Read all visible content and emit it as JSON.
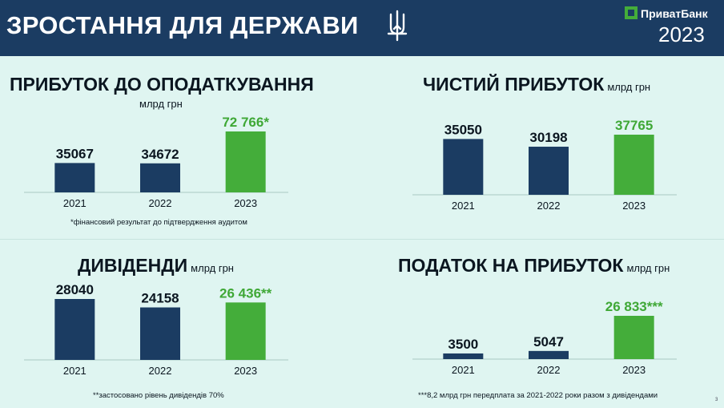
{
  "header": {
    "title": "ЗРОСТАННЯ ДЛЯ ДЕРЖАВИ",
    "brand": "ПриватБанк",
    "year": "2023",
    "emblem_icon": "trident-icon",
    "brand_icon": "privatbank-logo-icon"
  },
  "colors": {
    "header_bg": "#1b3c62",
    "background": "#dff5f1",
    "bar_dark": "#1b3c62",
    "bar_green": "#44ad3a",
    "label_green": "#3fa836"
  },
  "panels": {
    "profit_before_tax": {
      "title": "ПРИБУТОК ДО ОПОДАТКУВАННЯ",
      "unit": "млрд грн",
      "footnote": "*фінансовий результат до підтвердження аудитом"
    },
    "net_profit": {
      "title": "ЧИСТИЙ ПРИБУТОК",
      "unit": "млрд грн"
    },
    "dividends": {
      "title": "ДИВІДЕНДИ",
      "unit": "млрд грн",
      "footnote": "**застосовано рівень дивідендів 70%"
    },
    "income_tax": {
      "title": "ПОДАТОК НА ПРИБУТОК",
      "unit": "млрд грн",
      "footnote": "***8,2 млрд грн передплата за 2021-2022 роки разом з дивідендами"
    }
  },
  "page_number": "3",
  "chart_data": [
    {
      "type": "bar",
      "title": "ПРИБУТОК ДО ОПОДАТКУВАННЯ",
      "ylabel": "млрд грн",
      "categories": [
        "2021",
        "2022",
        "2023"
      ],
      "values": [
        35067,
        34672,
        72766
      ],
      "labels": [
        "35067",
        "34672",
        "72 766*"
      ]
    },
    {
      "type": "bar",
      "title": "ЧИСТИЙ ПРИБУТОК",
      "ylabel": "млрд грн",
      "categories": [
        "2021",
        "2022",
        "2023"
      ],
      "values": [
        35050,
        30198,
        37765
      ],
      "labels": [
        "35050",
        "30198",
        "37765"
      ]
    },
    {
      "type": "bar",
      "title": "ДИВІДЕНДИ",
      "ylabel": "млрд грн",
      "categories": [
        "2021",
        "2022",
        "2023"
      ],
      "values": [
        28040,
        24158,
        26436
      ],
      "labels": [
        "28040",
        "24158",
        "26 436**"
      ]
    },
    {
      "type": "bar",
      "title": "ПОДАТОК НА ПРИБУТОК",
      "ylabel": "млрд грн",
      "categories": [
        "2021",
        "2022",
        "2023"
      ],
      "values": [
        3500,
        5047,
        26833
      ],
      "labels": [
        "3500",
        "5047",
        "26 833***"
      ]
    }
  ]
}
